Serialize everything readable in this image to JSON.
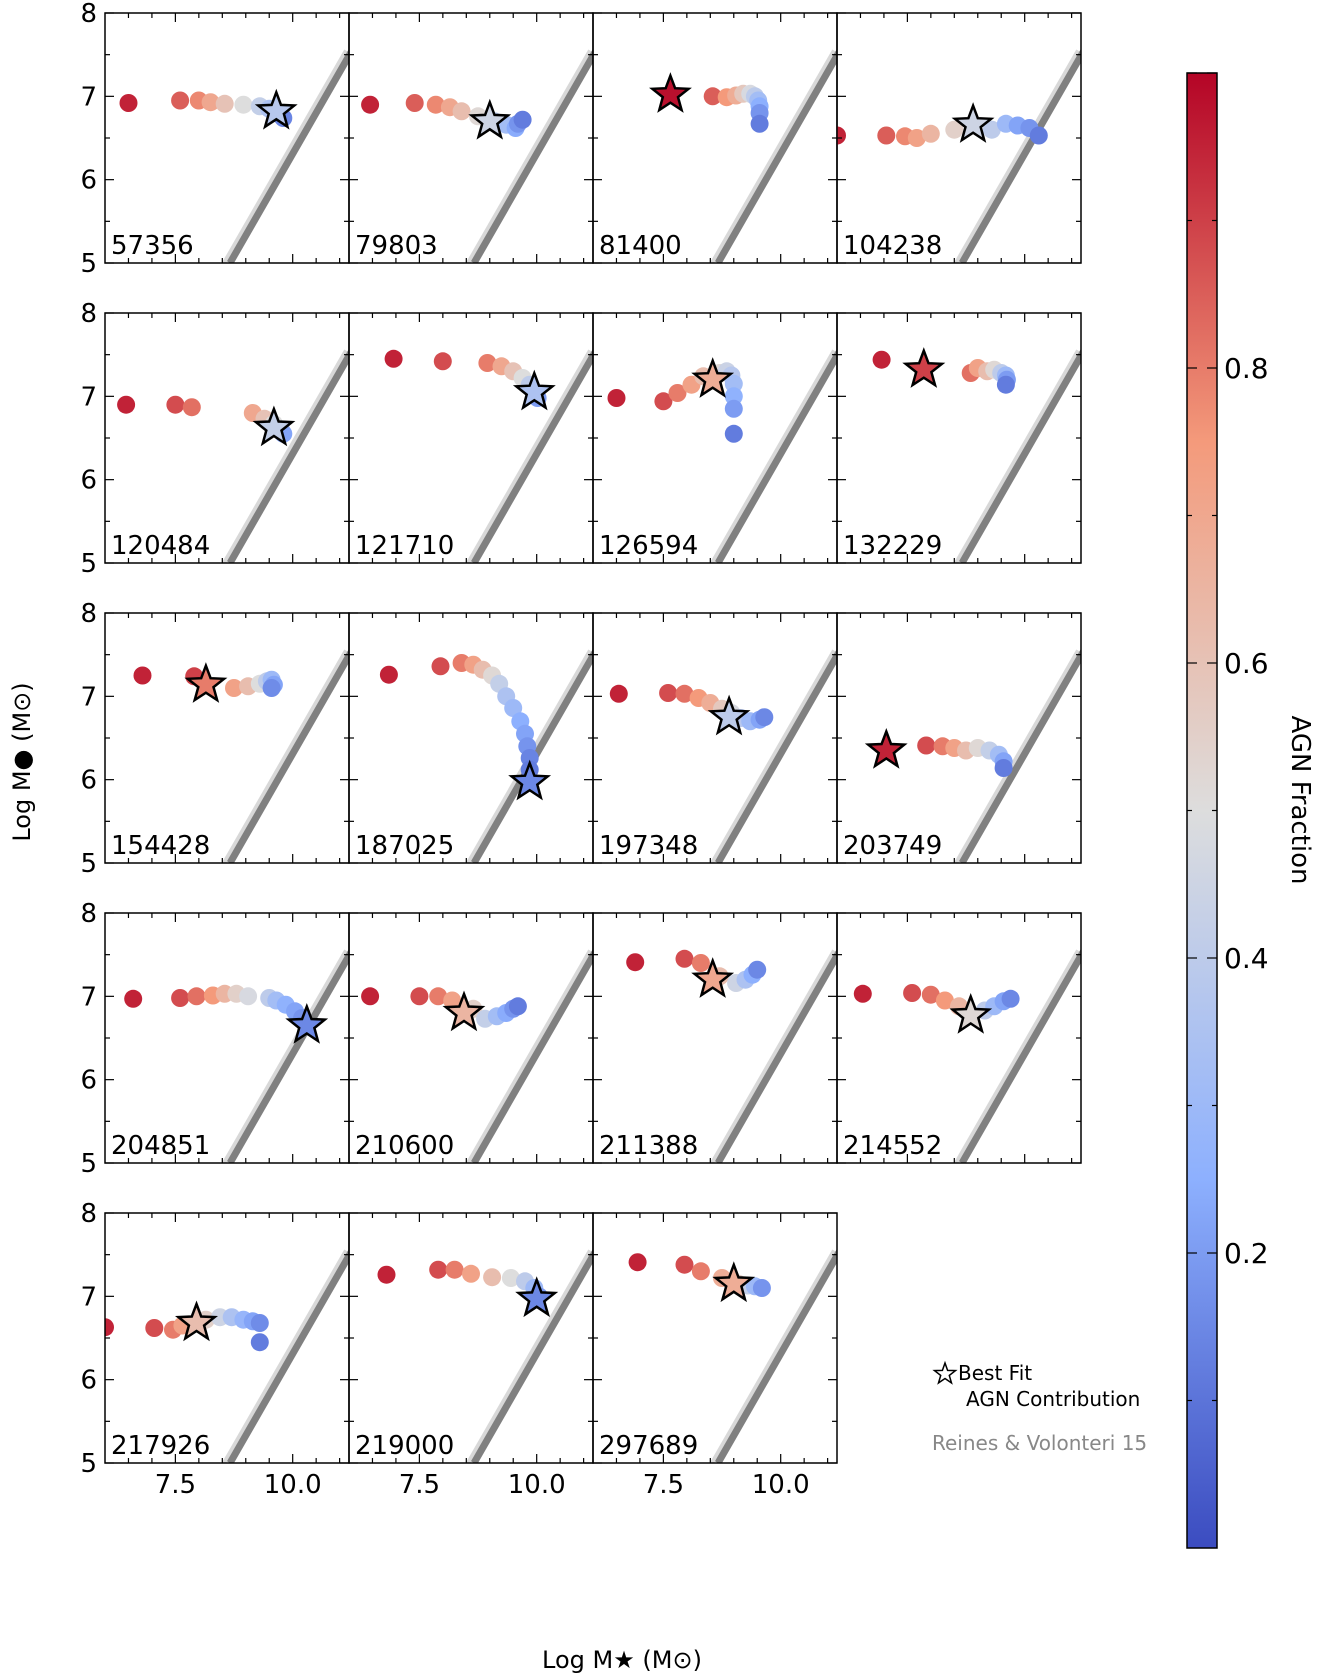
{
  "chart_data": {
    "type": "scatter",
    "xlabel": "Log M★ (M⊙)",
    "ylabel": "Log M● (M⊙)",
    "xlim": [
      6.0,
      11.2
    ],
    "ylim": [
      5,
      8
    ],
    "xticks": [
      "7.5",
      "10.0"
    ],
    "yticks": [
      "5",
      "6",
      "7",
      "8"
    ],
    "colorbar": {
      "label": "AGN Fraction",
      "range": [
        0.0,
        1.0
      ],
      "ticks": [
        "0.2",
        "0.4",
        "0.6",
        "0.8"
      ],
      "colormap": "coolwarm"
    },
    "legend": {
      "position": "lower-right (empty grid slot)",
      "star_label_1": "Best Fit",
      "star_label_2": "AGN Contribution",
      "relation_label": "Reines & Volonteri 15"
    },
    "relation": {
      "name": "Reines & Volonteri 15",
      "x": [
        8.6,
        11.2
      ],
      "y": [
        5.0,
        7.55
      ]
    },
    "panels": [
      {
        "id": "57356",
        "star": {
          "x": 9.65,
          "y": 6.82,
          "f": 0.38
        },
        "points": [
          [
            6.5,
            6.92,
            0.95
          ],
          [
            7.6,
            6.95,
            0.85
          ],
          [
            8.0,
            6.95,
            0.78
          ],
          [
            8.25,
            6.93,
            0.7
          ],
          [
            8.55,
            6.91,
            0.6
          ],
          [
            8.95,
            6.9,
            0.5
          ],
          [
            9.3,
            6.88,
            0.42
          ],
          [
            9.5,
            6.85,
            0.35
          ],
          [
            9.65,
            6.8,
            0.28
          ],
          [
            9.75,
            6.77,
            0.2
          ],
          [
            9.8,
            6.74,
            0.14
          ]
        ]
      },
      {
        "id": "79803",
        "star": {
          "x": 9.0,
          "y": 6.7,
          "f": 0.45
        },
        "points": [
          [
            6.45,
            6.9,
            0.95
          ],
          [
            7.4,
            6.92,
            0.85
          ],
          [
            7.85,
            6.9,
            0.78
          ],
          [
            8.15,
            6.87,
            0.7
          ],
          [
            8.4,
            6.82,
            0.62
          ],
          [
            8.75,
            6.76,
            0.52
          ],
          [
            9.1,
            6.7,
            0.4
          ],
          [
            9.35,
            6.66,
            0.32
          ],
          [
            9.55,
            6.62,
            0.24
          ],
          [
            9.6,
            6.67,
            0.18
          ],
          [
            9.7,
            6.72,
            0.12
          ]
        ]
      },
      {
        "id": "81400",
        "star": {
          "x": 7.65,
          "y": 7.02,
          "f": 0.98
        },
        "points": [
          [
            8.55,
            7.0,
            0.85
          ],
          [
            8.85,
            6.99,
            0.75
          ],
          [
            9.05,
            7.01,
            0.68
          ],
          [
            9.2,
            7.03,
            0.58
          ],
          [
            9.35,
            7.03,
            0.48
          ],
          [
            9.45,
            7.0,
            0.4
          ],
          [
            9.52,
            6.95,
            0.32
          ],
          [
            9.55,
            6.88,
            0.25
          ],
          [
            9.55,
            6.8,
            0.18
          ],
          [
            9.55,
            6.67,
            0.12
          ]
        ]
      },
      {
        "id": "104238",
        "star": {
          "x": 8.9,
          "y": 6.66,
          "f": 0.45
        },
        "points": [
          [
            6.0,
            6.53,
            0.95
          ],
          [
            7.05,
            6.53,
            0.85
          ],
          [
            7.45,
            6.52,
            0.78
          ],
          [
            7.7,
            6.5,
            0.72
          ],
          [
            8.0,
            6.55,
            0.65
          ],
          [
            8.5,
            6.6,
            0.55
          ],
          [
            9.3,
            6.6,
            0.4
          ],
          [
            9.6,
            6.67,
            0.3
          ],
          [
            9.85,
            6.65,
            0.22
          ],
          [
            10.1,
            6.62,
            0.18
          ],
          [
            10.3,
            6.53,
            0.12
          ]
        ]
      },
      {
        "id": "120484",
        "star": {
          "x": 9.6,
          "y": 6.62,
          "f": 0.42
        },
        "points": [
          [
            6.45,
            6.9,
            0.95
          ],
          [
            7.5,
            6.9,
            0.88
          ],
          [
            7.85,
            6.87,
            0.82
          ],
          [
            9.15,
            6.8,
            0.7
          ],
          [
            9.4,
            6.73,
            0.6
          ],
          [
            9.6,
            6.67,
            0.5
          ],
          [
            9.75,
            6.6,
            0.35
          ],
          [
            9.8,
            6.55,
            0.22
          ]
        ]
      },
      {
        "id": "121710",
        "star": {
          "x": 9.95,
          "y": 7.05,
          "f": 0.35
        },
        "points": [
          [
            6.95,
            7.45,
            0.95
          ],
          [
            8.0,
            7.42,
            0.88
          ],
          [
            8.95,
            7.4,
            0.8
          ],
          [
            9.25,
            7.36,
            0.7
          ],
          [
            9.5,
            7.3,
            0.6
          ],
          [
            9.7,
            7.22,
            0.5
          ],
          [
            9.85,
            7.14,
            0.4
          ],
          [
            9.95,
            7.05,
            0.3
          ],
          [
            10.02,
            6.98,
            0.2
          ]
        ]
      },
      {
        "id": "126594",
        "star": {
          "x": 8.55,
          "y": 7.2,
          "f": 0.68
        },
        "points": [
          [
            6.5,
            6.98,
            0.95
          ],
          [
            7.5,
            6.94,
            0.88
          ],
          [
            7.8,
            7.04,
            0.8
          ],
          [
            8.1,
            7.14,
            0.72
          ],
          [
            8.35,
            7.24,
            0.62
          ],
          [
            8.7,
            7.28,
            0.52
          ],
          [
            8.85,
            7.3,
            0.44
          ],
          [
            8.95,
            7.25,
            0.38
          ],
          [
            9.0,
            7.15,
            0.32
          ],
          [
            9.0,
            7.0,
            0.26
          ],
          [
            9.0,
            6.85,
            0.2
          ],
          [
            9.0,
            6.55,
            0.12
          ]
        ]
      },
      {
        "id": "132229",
        "star": {
          "x": 7.85,
          "y": 7.32,
          "f": 0.9
        },
        "points": [
          [
            6.95,
            7.44,
            0.95
          ],
          [
            8.85,
            7.28,
            0.82
          ],
          [
            9.0,
            7.34,
            0.72
          ],
          [
            9.2,
            7.3,
            0.62
          ],
          [
            9.35,
            7.32,
            0.52
          ],
          [
            9.5,
            7.28,
            0.4
          ],
          [
            9.6,
            7.25,
            0.3
          ],
          [
            9.62,
            7.2,
            0.2
          ],
          [
            9.6,
            7.14,
            0.12
          ]
        ]
      },
      {
        "id": "154428",
        "star": {
          "x": 8.15,
          "y": 7.14,
          "f": 0.8
        },
        "points": [
          [
            6.8,
            7.25,
            0.95
          ],
          [
            7.9,
            7.24,
            0.9
          ],
          [
            8.75,
            7.1,
            0.72
          ],
          [
            9.05,
            7.12,
            0.62
          ],
          [
            9.3,
            7.15,
            0.5
          ],
          [
            9.45,
            7.18,
            0.4
          ],
          [
            9.55,
            7.2,
            0.3
          ],
          [
            9.6,
            7.14,
            0.22
          ],
          [
            9.55,
            7.1,
            0.16
          ]
        ]
      },
      {
        "id": "187025",
        "star": {
          "x": 9.85,
          "y": 5.97,
          "f": 0.15
        },
        "points": [
          [
            6.85,
            7.26,
            0.95
          ],
          [
            7.95,
            7.36,
            0.88
          ],
          [
            8.4,
            7.4,
            0.8
          ],
          [
            8.65,
            7.38,
            0.72
          ],
          [
            8.85,
            7.32,
            0.62
          ],
          [
            9.05,
            7.25,
            0.52
          ],
          [
            9.2,
            7.15,
            0.42
          ],
          [
            9.35,
            7.0,
            0.35
          ],
          [
            9.5,
            6.86,
            0.3
          ],
          [
            9.65,
            6.7,
            0.25
          ],
          [
            9.75,
            6.55,
            0.22
          ],
          [
            9.8,
            6.4,
            0.18
          ],
          [
            9.85,
            6.26,
            0.14
          ],
          [
            9.85,
            6.12,
            0.12
          ]
        ]
      },
      {
        "id": "197348",
        "star": {
          "x": 8.9,
          "y": 6.75,
          "f": 0.4
        },
        "points": [
          [
            6.55,
            7.03,
            0.95
          ],
          [
            7.6,
            7.04,
            0.88
          ],
          [
            7.95,
            7.03,
            0.82
          ],
          [
            8.25,
            6.98,
            0.75
          ],
          [
            8.5,
            6.92,
            0.68
          ],
          [
            8.75,
            6.85,
            0.58
          ],
          [
            8.95,
            6.8,
            0.48
          ],
          [
            9.15,
            6.74,
            0.38
          ],
          [
            9.35,
            6.7,
            0.3
          ],
          [
            9.55,
            6.72,
            0.22
          ],
          [
            9.65,
            6.75,
            0.15
          ]
        ]
      },
      {
        "id": "203749",
        "star": {
          "x": 7.05,
          "y": 6.35,
          "f": 0.95
        },
        "points": [
          [
            7.9,
            6.41,
            0.88
          ],
          [
            8.25,
            6.4,
            0.8
          ],
          [
            8.5,
            6.38,
            0.72
          ],
          [
            8.75,
            6.35,
            0.62
          ],
          [
            9.0,
            6.38,
            0.52
          ],
          [
            9.25,
            6.35,
            0.42
          ],
          [
            9.45,
            6.3,
            0.32
          ],
          [
            9.55,
            6.22,
            0.22
          ],
          [
            9.55,
            6.14,
            0.12
          ]
        ]
      },
      {
        "id": "204851",
        "star": {
          "x": 10.3,
          "y": 6.65,
          "f": 0.15
        },
        "points": [
          [
            6.6,
            6.97,
            0.95
          ],
          [
            7.6,
            6.98,
            0.88
          ],
          [
            7.95,
            7.0,
            0.82
          ],
          [
            8.3,
            7.01,
            0.75
          ],
          [
            8.55,
            7.03,
            0.65
          ],
          [
            8.8,
            7.03,
            0.55
          ],
          [
            9.05,
            7.0,
            0.48
          ],
          [
            9.5,
            6.98,
            0.4
          ],
          [
            9.65,
            6.95,
            0.32
          ],
          [
            9.85,
            6.9,
            0.26
          ],
          [
            10.05,
            6.82,
            0.22
          ],
          [
            10.2,
            6.74,
            0.18
          ]
        ]
      },
      {
        "id": "210600",
        "star": {
          "x": 8.45,
          "y": 6.8,
          "f": 0.65
        },
        "points": [
          [
            6.45,
            7.0,
            0.95
          ],
          [
            7.5,
            7.0,
            0.88
          ],
          [
            7.9,
            7.0,
            0.8
          ],
          [
            8.2,
            6.95,
            0.72
          ],
          [
            8.65,
            6.85,
            0.55
          ],
          [
            8.9,
            6.73,
            0.42
          ],
          [
            9.15,
            6.76,
            0.32
          ],
          [
            9.35,
            6.8,
            0.24
          ],
          [
            9.5,
            6.85,
            0.18
          ],
          [
            9.6,
            6.88,
            0.12
          ]
        ]
      },
      {
        "id": "211388",
        "star": {
          "x": 8.55,
          "y": 7.2,
          "f": 0.7
        },
        "points": [
          [
            6.9,
            7.41,
            0.95
          ],
          [
            7.95,
            7.45,
            0.88
          ],
          [
            8.3,
            7.4,
            0.8
          ],
          [
            8.7,
            7.24,
            0.62
          ],
          [
            9.05,
            7.16,
            0.45
          ],
          [
            9.25,
            7.2,
            0.35
          ],
          [
            9.4,
            7.26,
            0.25
          ],
          [
            9.5,
            7.32,
            0.15
          ]
        ]
      },
      {
        "id": "214552",
        "star": {
          "x": 8.85,
          "y": 6.77,
          "f": 0.52
        },
        "points": [
          [
            6.55,
            7.03,
            0.95
          ],
          [
            7.6,
            7.04,
            0.88
          ],
          [
            8.0,
            7.02,
            0.82
          ],
          [
            8.3,
            6.95,
            0.75
          ],
          [
            8.6,
            6.88,
            0.65
          ],
          [
            9.15,
            6.83,
            0.4
          ],
          [
            9.35,
            6.88,
            0.3
          ],
          [
            9.55,
            6.94,
            0.22
          ],
          [
            9.7,
            6.97,
            0.15
          ]
        ]
      },
      {
        "id": "217926",
        "star": {
          "x": 7.95,
          "y": 6.68,
          "f": 0.62
        },
        "points": [
          [
            6.0,
            6.63,
            0.95
          ],
          [
            7.05,
            6.62,
            0.88
          ],
          [
            7.45,
            6.6,
            0.8
          ],
          [
            7.65,
            6.65,
            0.72
          ],
          [
            8.15,
            6.72,
            0.55
          ],
          [
            8.45,
            6.75,
            0.45
          ],
          [
            8.7,
            6.75,
            0.35
          ],
          [
            8.95,
            6.72,
            0.28
          ],
          [
            9.15,
            6.7,
            0.22
          ],
          [
            9.3,
            6.68,
            0.16
          ],
          [
            9.3,
            6.45,
            0.12
          ]
        ]
      },
      {
        "id": "219000",
        "star": {
          "x": 10.0,
          "y": 6.97,
          "f": 0.15
        },
        "points": [
          [
            6.8,
            7.26,
            0.95
          ],
          [
            7.9,
            7.32,
            0.88
          ],
          [
            8.25,
            7.32,
            0.8
          ],
          [
            8.6,
            7.27,
            0.72
          ],
          [
            9.05,
            7.23,
            0.62
          ],
          [
            9.45,
            7.22,
            0.5
          ],
          [
            9.75,
            7.18,
            0.4
          ],
          [
            9.95,
            7.1,
            0.3
          ],
          [
            10.05,
            7.0,
            0.2
          ]
        ]
      },
      {
        "id": "297689",
        "star": {
          "x": 9.0,
          "y": 7.15,
          "f": 0.68
        },
        "points": [
          [
            6.95,
            7.41,
            0.95
          ],
          [
            7.95,
            7.38,
            0.88
          ],
          [
            8.3,
            7.3,
            0.8
          ],
          [
            8.75,
            7.22,
            0.68
          ],
          [
            9.1,
            7.15,
            0.55
          ],
          [
            9.3,
            7.13,
            0.42
          ],
          [
            9.45,
            7.12,
            0.3
          ],
          [
            9.6,
            7.1,
            0.18
          ]
        ]
      }
    ]
  }
}
